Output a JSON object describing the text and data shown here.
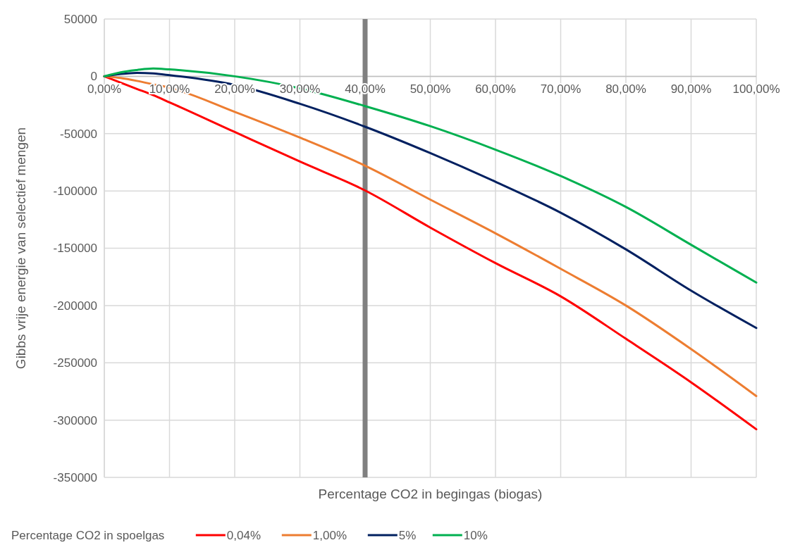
{
  "chart_data": {
    "type": "line",
    "xlabel": "Percentage CO2 in begingas (biogas)",
    "ylabel": "Gibbs vrije energie van selectief mengen",
    "legend_title": "Percentage CO2 in spoelgas",
    "legend": "bottom",
    "grid": true,
    "marker": "none",
    "line_style": "solid",
    "x": [
      0,
      2.5,
      5,
      7.5,
      10,
      20,
      30,
      40,
      50,
      60,
      70,
      80,
      90,
      100
    ],
    "xlim": [
      0,
      100
    ],
    "xticks": [
      {
        "value": 0,
        "label": "0,00%"
      },
      {
        "value": 10,
        "label": "10,00%"
      },
      {
        "value": 20,
        "label": "20,00%"
      },
      {
        "value": 30,
        "label": "30,00%"
      },
      {
        "value": 40,
        "label": "40,00%"
      },
      {
        "value": 50,
        "label": "50,00%"
      },
      {
        "value": 60,
        "label": "60,00%"
      },
      {
        "value": 70,
        "label": "70,00%"
      },
      {
        "value": 80,
        "label": "80,00%"
      },
      {
        "value": 90,
        "label": "90,00%"
      },
      {
        "value": 100,
        "label": "100,00%"
      }
    ],
    "ylim": [
      -350000,
      50000
    ],
    "yticks": [
      -350000,
      -300000,
      -250000,
      -200000,
      -150000,
      -100000,
      -50000,
      0,
      50000
    ],
    "ref_lines": [
      {
        "axis": "x",
        "value": 40,
        "color": "#808080"
      }
    ],
    "series": [
      {
        "name": "0,04%",
        "color": "#ff0000",
        "values": [
          0,
          -5500,
          -11000,
          -16500,
          -22700,
          -48600,
          -74400,
          -99600,
          -132000,
          -163000,
          -192000,
          -229000,
          -267000,
          -308000
        ]
      },
      {
        "name": "1,00%",
        "color": "#ed7d31",
        "values": [
          0,
          -1500,
          -4000,
          -7000,
          -10000,
          -31000,
          -53500,
          -78000,
          -107600,
          -137000,
          -168000,
          -200000,
          -238000,
          -279000
        ]
      },
      {
        "name": "5%",
        "color": "#002060",
        "values": [
          0,
          2000,
          3000,
          2500,
          1000,
          -7500,
          -24000,
          -44000,
          -67000,
          -92000,
          -119000,
          -151000,
          -187000,
          -219600
        ]
      },
      {
        "name": "10%",
        "color": "#00b050",
        "values": [
          0,
          3500,
          5500,
          6800,
          6000,
          0,
          -10500,
          -26000,
          -43500,
          -64000,
          -87000,
          -114000,
          -147000,
          -180000
        ]
      }
    ]
  }
}
